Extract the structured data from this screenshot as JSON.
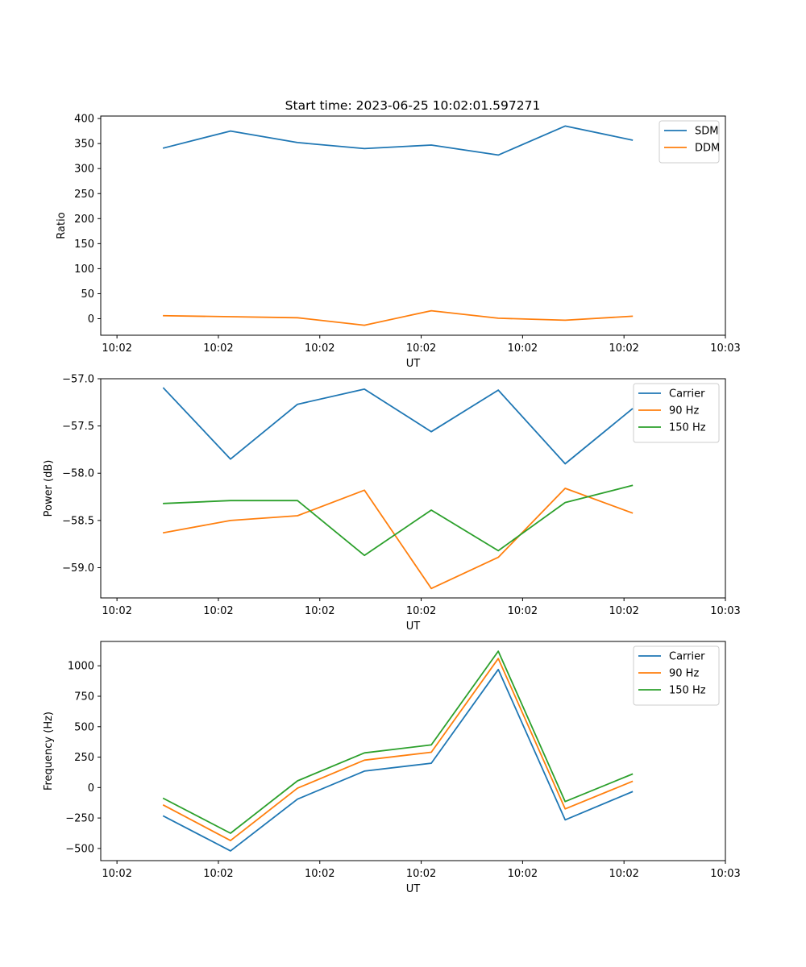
{
  "chart_data": [
    {
      "type": "line",
      "title": "Start time: 2023-06-25 10:02:01.597271",
      "xlabel": "UT",
      "ylabel": "Ratio",
      "x_tick_labels": [
        "10:02",
        "10:02",
        "10:02",
        "10:02",
        "10:02",
        "10:02",
        "10:03"
      ],
      "x_tick_values": [
        0.0,
        0.5,
        1.0,
        1.5,
        2.0,
        2.5,
        3.0
      ],
      "x": [
        0.23,
        0.56,
        0.89,
        1.22,
        1.55,
        1.88,
        2.21,
        2.54
      ],
      "xlim": [
        -0.08,
        3.0
      ],
      "ylim": [
        -33,
        405
      ],
      "y_ticks": [
        0,
        50,
        100,
        150,
        200,
        250,
        300,
        350,
        400
      ],
      "legend": "top-right",
      "series": [
        {
          "name": "SDM",
          "color": "#1f77b4",
          "values": [
            341,
            375,
            352,
            340,
            347,
            327,
            385,
            357
          ]
        },
        {
          "name": "DDM",
          "color": "#ff7f0e",
          "values": [
            6,
            4,
            2,
            -13,
            16,
            1,
            -3,
            5
          ]
        }
      ]
    },
    {
      "type": "line",
      "title": "",
      "xlabel": "UT",
      "ylabel": "Power (dB)",
      "x_tick_labels": [
        "10:02",
        "10:02",
        "10:02",
        "10:02",
        "10:02",
        "10:02",
        "10:03"
      ],
      "x_tick_values": [
        0.0,
        0.5,
        1.0,
        1.5,
        2.0,
        2.5,
        3.0
      ],
      "x": [
        0.23,
        0.56,
        0.89,
        1.22,
        1.55,
        1.88,
        2.21,
        2.54
      ],
      "xlim": [
        -0.08,
        3.0
      ],
      "ylim": [
        -59.32,
        -57.0
      ],
      "y_ticks": [
        -59.0,
        -58.5,
        -58.0,
        -57.5,
        -57.0
      ],
      "y_tick_labels": [
        "−59.0",
        "−58.5",
        "−58.0",
        "−57.5",
        "−57.0"
      ],
      "legend": "top-right",
      "series": [
        {
          "name": "Carrier",
          "color": "#1f77b4",
          "values": [
            -57.1,
            -57.85,
            -57.27,
            -57.11,
            -57.56,
            -57.12,
            -57.9,
            -57.32
          ]
        },
        {
          "name": "90 Hz",
          "color": "#ff7f0e",
          "values": [
            -58.63,
            -58.5,
            -58.45,
            -58.18,
            -59.22,
            -58.89,
            -58.16,
            -58.42
          ]
        },
        {
          "name": "150 Hz",
          "color": "#2ca02c",
          "values": [
            -58.32,
            -58.29,
            -58.29,
            -58.87,
            -58.39,
            -58.82,
            -58.31,
            -58.13
          ]
        }
      ]
    },
    {
      "type": "line",
      "title": "",
      "xlabel": "UT",
      "ylabel": "Frequency (Hz)",
      "x_tick_labels": [
        "10:02",
        "10:02",
        "10:02",
        "10:02",
        "10:02",
        "10:02",
        "10:03"
      ],
      "x_tick_values": [
        0.0,
        0.5,
        1.0,
        1.5,
        2.0,
        2.5,
        3.0
      ],
      "x": [
        0.23,
        0.56,
        0.89,
        1.22,
        1.55,
        1.88,
        2.21,
        2.54
      ],
      "xlim": [
        -0.08,
        3.0
      ],
      "ylim": [
        -600,
        1200
      ],
      "y_ticks": [
        -500,
        -250,
        0,
        250,
        500,
        750,
        1000
      ],
      "y_tick_labels": [
        "−500",
        "−250",
        "0",
        "250",
        "500",
        "750",
        "1000"
      ],
      "legend": "top-right",
      "series": [
        {
          "name": "Carrier",
          "color": "#1f77b4",
          "values": [
            -235,
            -520,
            -95,
            135,
            200,
            970,
            -265,
            -35
          ]
        },
        {
          "name": "90 Hz",
          "color": "#ff7f0e",
          "values": [
            -145,
            -435,
            -5,
            225,
            290,
            1060,
            -175,
            50
          ]
        },
        {
          "name": "150 Hz",
          "color": "#2ca02c",
          "values": [
            -90,
            -375,
            55,
            285,
            350,
            1120,
            -115,
            110
          ]
        }
      ]
    }
  ]
}
